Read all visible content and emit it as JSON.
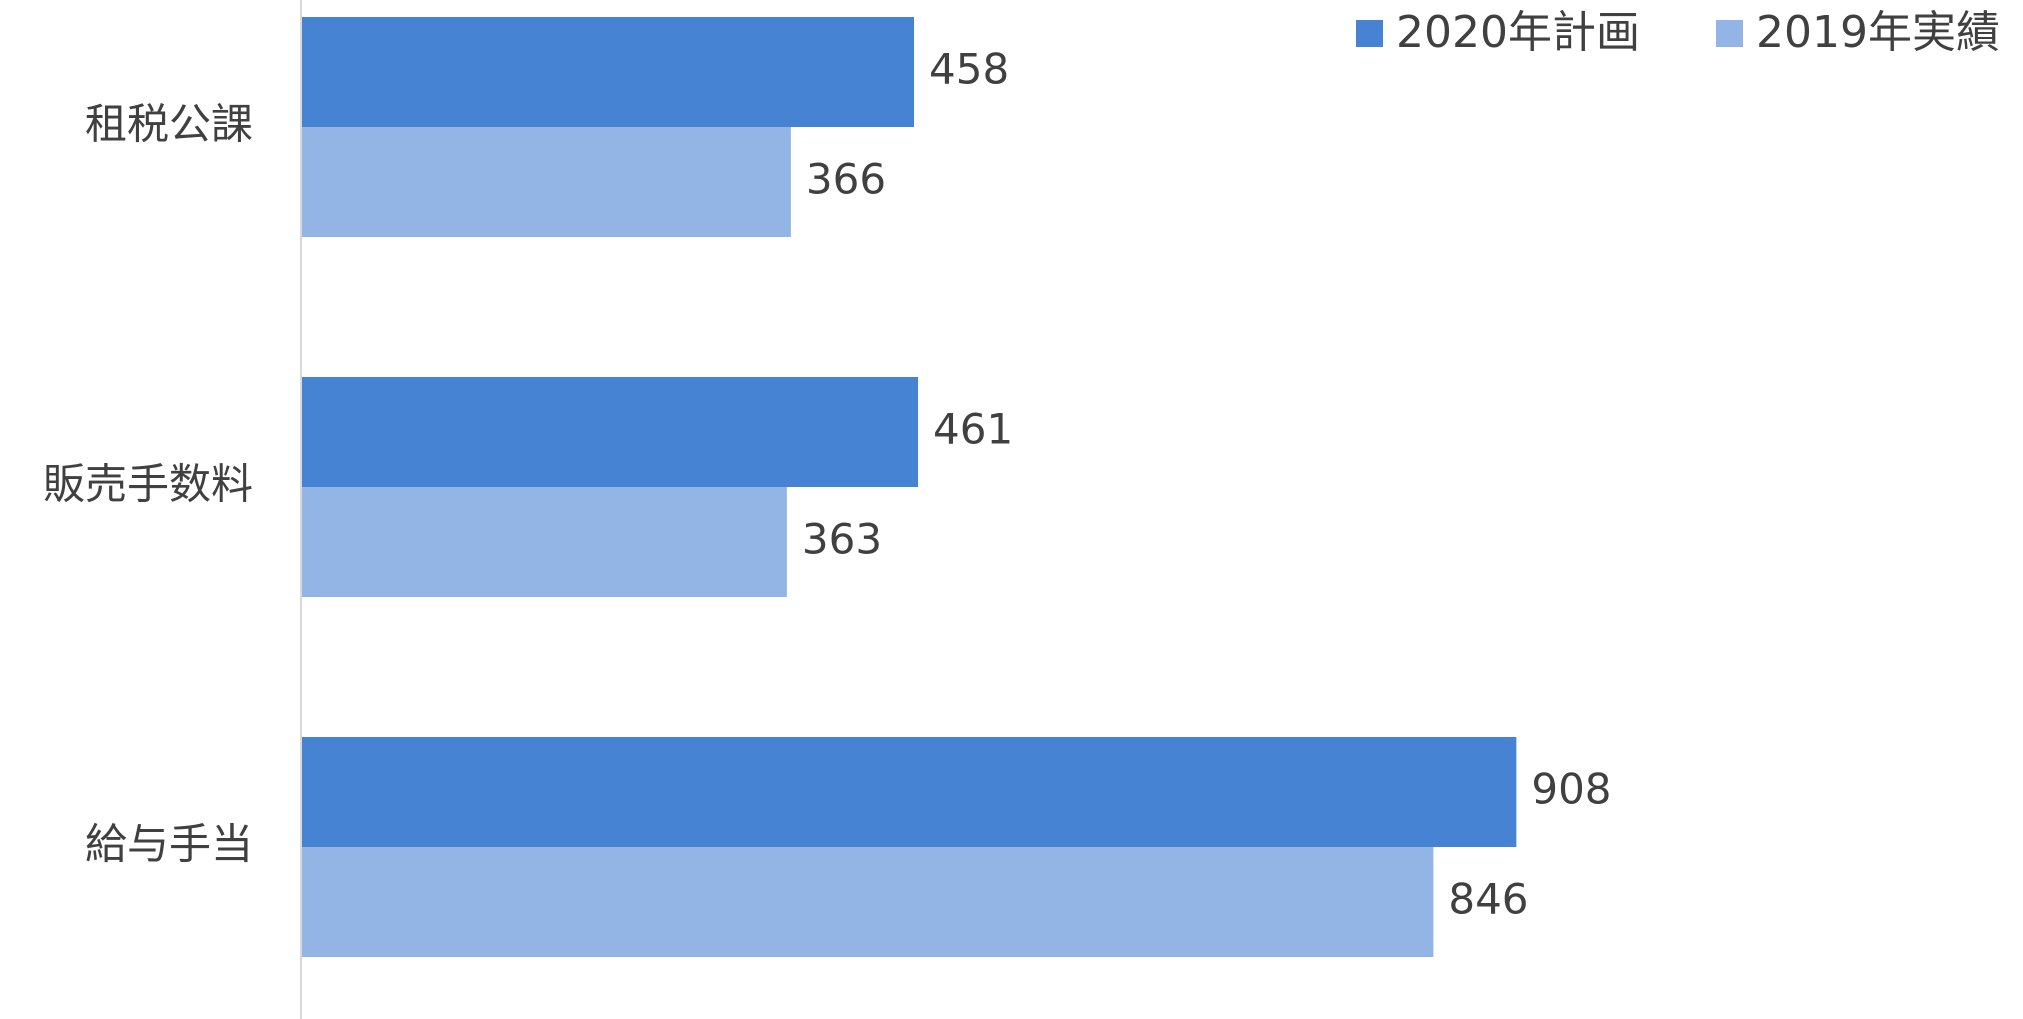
{
  "chart_data": {
    "type": "bar",
    "orientation": "horizontal",
    "categories": [
      "租税公課",
      "販売手数料",
      "給与手当"
    ],
    "series": [
      {
        "name": "2020年計画",
        "values": [
          458,
          461,
          908
        ],
        "color": "#4683D3"
      },
      {
        "name": "2019年実績",
        "values": [
          366,
          363,
          846
        ],
        "color": "#92B5E5"
      }
    ],
    "data_labels": true,
    "xlim": [
      0,
      1020
    ],
    "grid": false,
    "legend_position": "top-right",
    "title": "",
    "xlabel": "",
    "ylabel": ""
  }
}
